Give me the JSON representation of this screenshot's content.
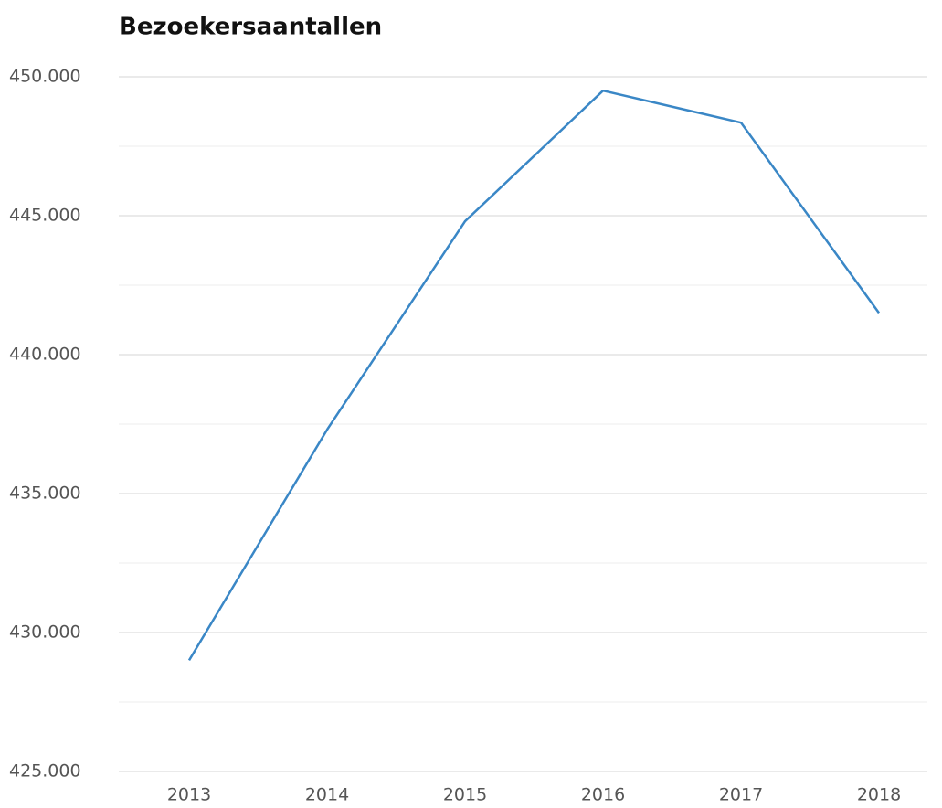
{
  "chart_data": {
    "type": "line",
    "title": "Bezoekersaantallen",
    "categories": [
      "2013",
      "2014",
      "2015",
      "2016",
      "2017",
      "2018"
    ],
    "series": [
      {
        "name": "Bezoekersaantallen",
        "color": "#3a87c6",
        "values": [
          429000,
          437300,
          444800,
          449500,
          448350,
          441500
        ]
      }
    ],
    "ylim": [
      425000,
      450000
    ],
    "yticks": [
      {
        "value": 425000,
        "label": "425.000"
      },
      {
        "value": 430000,
        "label": "430.000"
      },
      {
        "value": 435000,
        "label": "435.000"
      },
      {
        "value": 440000,
        "label": "440.000"
      },
      {
        "value": 445000,
        "label": "445.000"
      },
      {
        "value": 450000,
        "label": "450.000"
      }
    ],
    "yticks_minor": [
      427500,
      432500,
      437500,
      442500,
      447500
    ],
    "grid": true
  }
}
